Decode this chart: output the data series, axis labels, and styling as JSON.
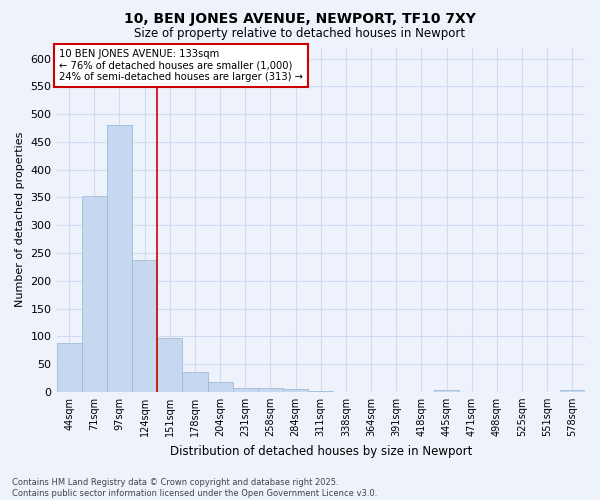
{
  "title": "10, BEN JONES AVENUE, NEWPORT, TF10 7XY",
  "subtitle": "Size of property relative to detached houses in Newport",
  "xlabel": "Distribution of detached houses by size in Newport",
  "ylabel": "Number of detached properties",
  "categories": [
    "44sqm",
    "71sqm",
    "97sqm",
    "124sqm",
    "151sqm",
    "178sqm",
    "204sqm",
    "231sqm",
    "258sqm",
    "284sqm",
    "311sqm",
    "338sqm",
    "364sqm",
    "391sqm",
    "418sqm",
    "445sqm",
    "471sqm",
    "498sqm",
    "525sqm",
    "551sqm",
    "578sqm"
  ],
  "values": [
    87,
    352,
    480,
    238,
    97,
    35,
    17,
    7,
    7,
    5,
    2,
    0,
    0,
    0,
    0,
    4,
    0,
    0,
    0,
    0,
    4
  ],
  "bar_color": "#c5d8f0",
  "bar_edge_color": "#a0bcd8",
  "bg_color": "#edf2fb",
  "grid_color": "#d0daf0",
  "vline_x": 3.5,
  "vline_color": "#cc0000",
  "annotation_title": "10 BEN JONES AVENUE: 133sqm",
  "annotation_line1": "← 76% of detached houses are smaller (1,000)",
  "annotation_line2": "24% of semi-detached houses are larger (313) →",
  "annotation_box_color": "#ffffff",
  "annotation_box_edge": "#cc0000",
  "footer_line1": "Contains HM Land Registry data © Crown copyright and database right 2025.",
  "footer_line2": "Contains public sector information licensed under the Open Government Licence v3.0.",
  "ylim": [
    0,
    620
  ],
  "yticks": [
    0,
    50,
    100,
    150,
    200,
    250,
    300,
    350,
    400,
    450,
    500,
    550,
    600
  ]
}
